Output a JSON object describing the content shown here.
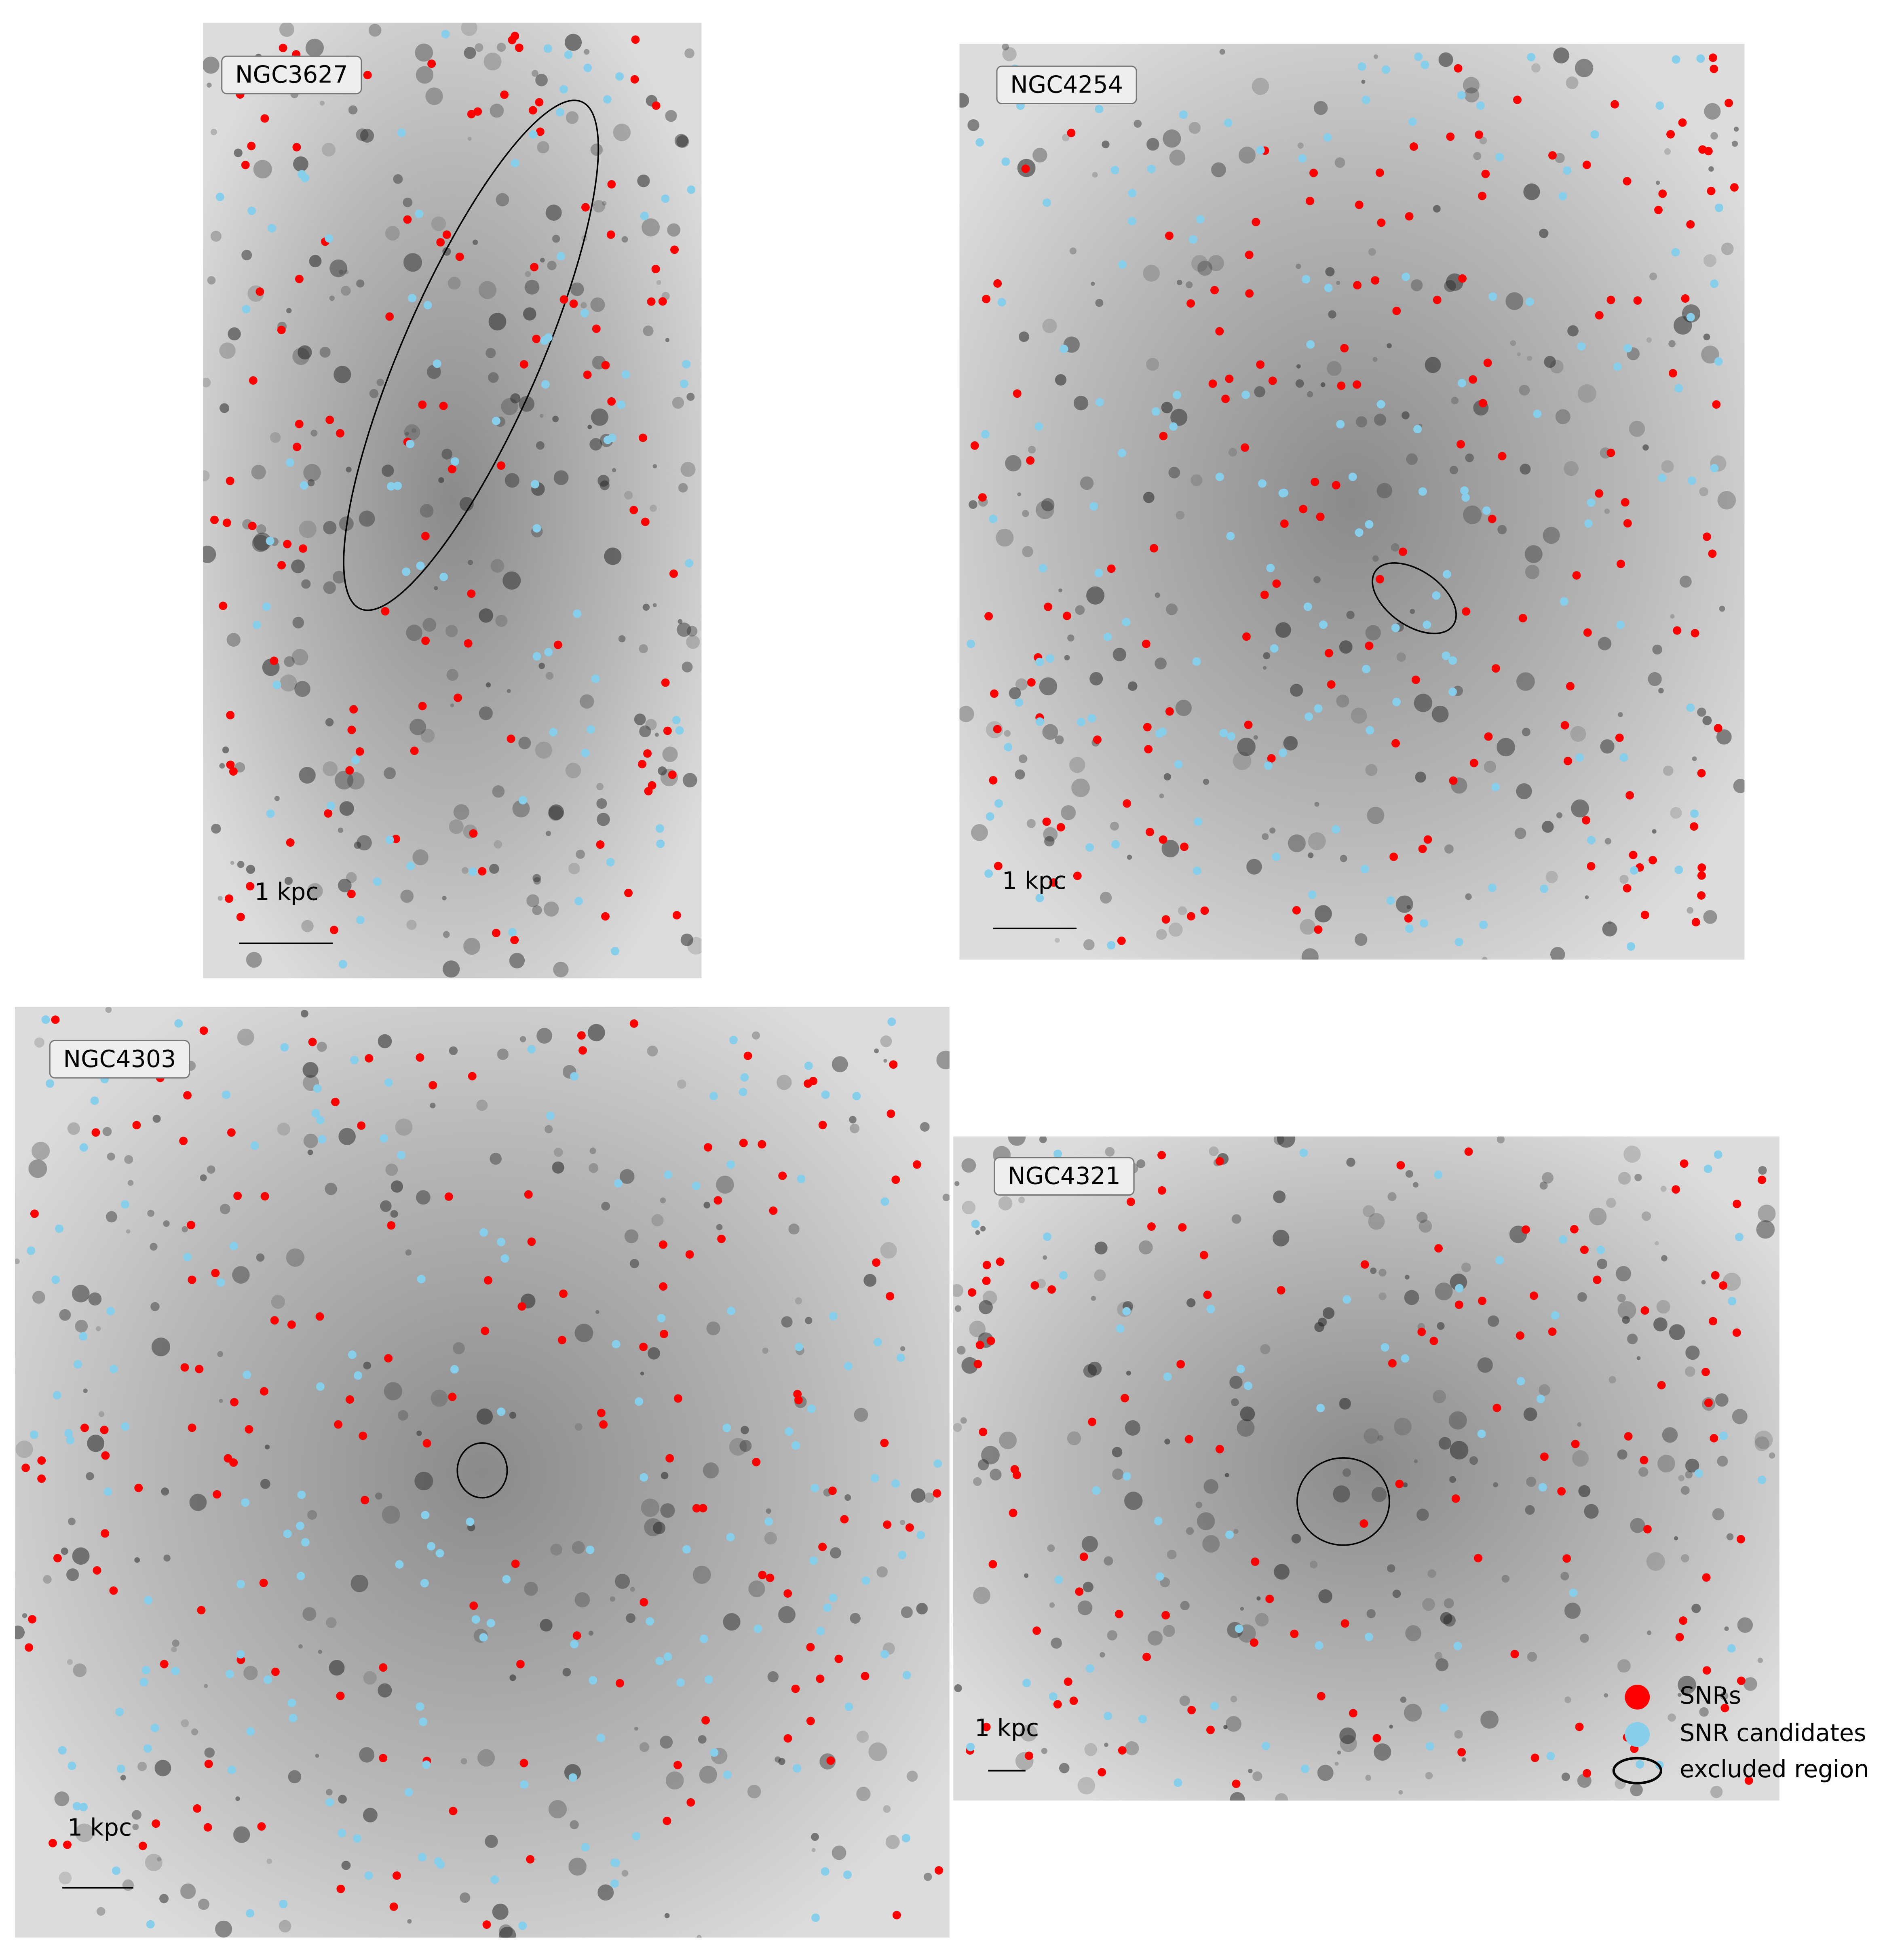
{
  "panels": [
    {
      "label": "NGC3627",
      "scale_label": "1 kpc"
    },
    {
      "label": "NGC4254",
      "scale_label": "1 kpc"
    },
    {
      "label": "NGC4303",
      "scale_label": "1 kpc"
    },
    {
      "label": "NGC4321",
      "scale_label": "1 kpc"
    }
  ],
  "legend": [
    {
      "label": "SNRs",
      "color": "#ff0000"
    },
    {
      "label": "SNR candidates",
      "color": "#87ceeb"
    },
    {
      "label": "excluded region",
      "color": "#000000"
    }
  ]
}
